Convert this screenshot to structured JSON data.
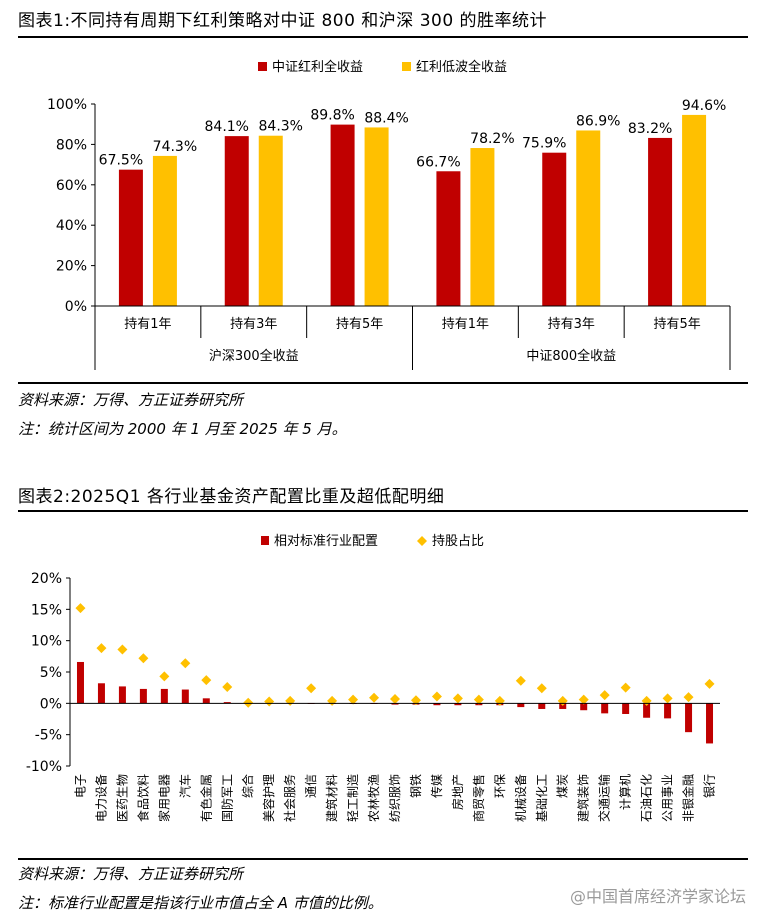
{
  "figure1": {
    "title": "图表1:不同持有周期下红利策略对中证 800 和沪深 300 的胜率统计",
    "source": "资料来源：万得、方正证券研究所",
    "note": "注：统计区间为 2000 年 1 月至 2025 年 5 月。"
  },
  "figure2": {
    "title": "图表2:2025Q1 各行业基金资产配置比重及超低配明细",
    "source": "资料来源：万得、方正证券研究所",
    "note": "注：标准行业配置是指该行业市值占全 A 市值的比例。"
  },
  "watermark": "@中国首席经济学家论坛",
  "colors": {
    "red": "#c00000",
    "gold": "#ffc000"
  },
  "chart_data": [
    {
      "type": "bar",
      "categories": [
        "持有1年",
        "持有3年",
        "持有5年",
        "持有1年",
        "持有3年",
        "持有5年"
      ],
      "groups": [
        {
          "label": "沪深300全收益",
          "span": [
            0,
            2
          ]
        },
        {
          "label": "中证800全收益",
          "span": [
            3,
            5
          ]
        }
      ],
      "series": [
        {
          "name": "中证红利全收益",
          "color": "#c00000",
          "values": [
            67.5,
            84.1,
            89.8,
            66.7,
            75.9,
            83.2
          ],
          "labels": [
            "67.5%",
            "84.1%",
            "89.8%",
            "66.7%",
            "75.9%",
            "83.2%"
          ]
        },
        {
          "name": "红利低波全收益",
          "color": "#ffc000",
          "values": [
            74.3,
            84.3,
            88.4,
            78.2,
            86.9,
            94.6
          ],
          "labels": [
            "74.3%",
            "84.3%",
            "88.4%",
            "78.2%",
            "86.9%",
            "94.6%"
          ]
        }
      ],
      "ylim": [
        0,
        100
      ],
      "yticks": [
        0,
        20,
        40,
        60,
        80,
        100
      ],
      "ytick_labels": [
        "0%",
        "20%",
        "40%",
        "60%",
        "80%",
        "100%"
      ],
      "legend_position": "top-center"
    },
    {
      "type": "bar",
      "categories": [
        "电子",
        "电力设备",
        "医药生物",
        "食品饮料",
        "家用电器",
        "汽车",
        "有色金属",
        "国防军工",
        "综合",
        "美容护理",
        "社会服务",
        "通信",
        "建筑材料",
        "轻工制造",
        "农林牧渔",
        "纺织服饰",
        "钢铁",
        "传媒",
        "房地产",
        "商贸零售",
        "环保",
        "机械设备",
        "基础化工",
        "煤炭",
        "建筑装饰",
        "交通运输",
        "计算机",
        "石油石化",
        "公用事业",
        "非银金融",
        "银行"
      ],
      "series": [
        {
          "name": "相对标准行业配置",
          "color": "#c00000",
          "mark": "bar",
          "values": [
            6.6,
            3.2,
            2.7,
            2.3,
            2.3,
            2.2,
            0.8,
            0.2,
            0.0,
            0.1,
            0.1,
            0.0,
            -0.1,
            -0.1,
            -0.1,
            -0.2,
            -0.2,
            -0.3,
            -0.3,
            -0.3,
            -0.3,
            -0.6,
            -0.9,
            -0.9,
            -1.1,
            -1.6,
            -1.7,
            -2.3,
            -2.4,
            -4.6,
            -6.4
          ]
        },
        {
          "name": "持股占比",
          "color": "#ffc000",
          "mark": "diamond",
          "values": [
            15.2,
            8.8,
            8.6,
            7.2,
            4.3,
            6.4,
            3.7,
            2.6,
            0.1,
            0.3,
            0.4,
            2.4,
            0.4,
            0.6,
            0.9,
            0.7,
            0.5,
            1.1,
            0.8,
            0.6,
            0.4,
            3.6,
            2.4,
            0.4,
            0.6,
            1.3,
            2.5,
            0.4,
            0.8,
            1.0,
            3.1
          ]
        }
      ],
      "ylim": [
        -10,
        20
      ],
      "yticks": [
        -10,
        -5,
        0,
        5,
        10,
        15,
        20
      ],
      "ytick_labels": [
        "-10%",
        "-5%",
        "0%",
        "5%",
        "10%",
        "15%",
        "20%"
      ],
      "legend_position": "top-center"
    }
  ]
}
